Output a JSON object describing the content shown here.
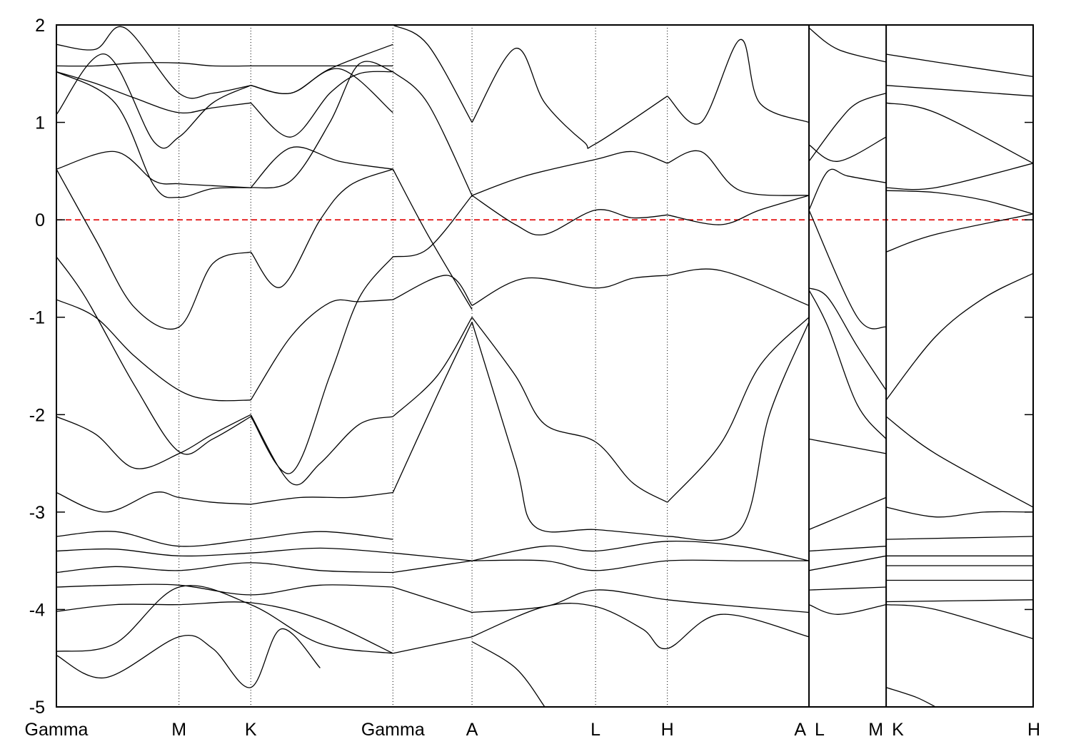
{
  "chart_data": {
    "type": "line",
    "title": "",
    "xlabel": "",
    "ylabel": "",
    "ylim": [
      -5,
      2
    ],
    "yticks": [
      "2",
      "1",
      "0",
      "-1",
      "-2",
      "-3",
      "-4",
      "-5"
    ],
    "ytick_values": [
      2,
      1,
      0,
      -1,
      -2,
      -3,
      -4,
      -5
    ],
    "xlim": [
      0,
      1
    ],
    "kpoints": [
      {
        "label": "Gamma",
        "x": 0.0
      },
      {
        "label": "M",
        "x": 0.1255
      },
      {
        "label": "K",
        "x": 0.199
      },
      {
        "label": "Gamma",
        "x": 0.3445
      },
      {
        "label": "A",
        "x": 0.4255
      },
      {
        "label": "L",
        "x": 0.552
      },
      {
        "label": "H",
        "x": 0.6255
      },
      {
        "label": "A",
        "x": 0.7705
      },
      {
        "label": "L",
        "x": 0.7705
      },
      {
        "label": "M",
        "x": 0.8495
      },
      {
        "label": "K",
        "x": 0.8495
      },
      {
        "label": "H",
        "x": 1.0
      }
    ],
    "segment_breaks": [
      0.7705,
      0.8495
    ],
    "fermi_level": {
      "value": 0,
      "color": "#e00000",
      "style": "dashed"
    },
    "grid": "vertical dotted lines at k-points",
    "line_color": "#000000",
    "series": [
      {
        "x": [
          0,
          0.03,
          0.08,
          0.1255,
          0.16,
          0.199
        ],
        "y": [
          -0.38,
          -0.8,
          -1.7,
          -2.38,
          -2.25,
          -2.02
        ]
      },
      {
        "x": [
          0.199,
          0.24,
          0.28,
          0.31,
          0.3445
        ],
        "y": [
          -2.02,
          -2.6,
          -1.6,
          -0.8,
          -0.38
        ]
      },
      {
        "x": [
          0,
          0.04,
          0.08,
          0.1255,
          0.16,
          0.199
        ],
        "y": [
          0.52,
          -0.2,
          -0.9,
          -1.1,
          -0.45,
          -0.33
        ]
      },
      {
        "x": [
          0.199,
          0.23,
          0.27,
          0.3,
          0.3445
        ],
        "y": [
          -0.33,
          -0.69,
          0.0,
          0.35,
          0.52
        ]
      },
      {
        "x": [
          0,
          0.04,
          0.08,
          0.1255,
          0.16,
          0.199
        ],
        "y": [
          -0.82,
          -1.0,
          -1.4,
          -1.75,
          -1.85,
          -1.85
        ]
      },
      {
        "x": [
          0.199,
          0.24,
          0.28,
          0.31,
          0.3445
        ],
        "y": [
          -1.85,
          -1.2,
          -0.85,
          -0.84,
          -0.82
        ]
      },
      {
        "x": [
          0,
          0.04,
          0.08,
          0.1255,
          0.16,
          0.199
        ],
        "y": [
          -2.02,
          -2.2,
          -2.55,
          -2.4,
          -2.2,
          -2.0
        ]
      },
      {
        "x": [
          0.199,
          0.24,
          0.27,
          0.31,
          0.3445
        ],
        "y": [
          -2.0,
          -2.7,
          -2.5,
          -2.1,
          -2.02
        ]
      },
      {
        "x": [
          0,
          0.05,
          0.1,
          0.1255,
          0.16,
          0.199
        ],
        "y": [
          -2.8,
          -3.0,
          -2.8,
          -2.85,
          -2.9,
          -2.92
        ]
      },
      {
        "x": [
          0.199,
          0.25,
          0.3,
          0.3445
        ],
        "y": [
          -2.92,
          -2.85,
          -2.85,
          -2.8
        ]
      },
      {
        "x": [
          0,
          0.06,
          0.1255,
          0.199,
          0.27,
          0.3445
        ],
        "y": [
          -3.25,
          -3.2,
          -3.35,
          -3.28,
          -3.2,
          -3.28
        ]
      },
      {
        "x": [
          0,
          0.06,
          0.1255,
          0.199,
          0.27,
          0.3445
        ],
        "y": [
          -3.4,
          -3.38,
          -3.45,
          -3.42,
          -3.37,
          -3.42
        ]
      },
      {
        "x": [
          0,
          0.06,
          0.1255,
          0.199,
          0.27,
          0.3445
        ],
        "y": [
          -3.62,
          -3.56,
          -3.6,
          -3.52,
          -3.6,
          -3.62
        ]
      },
      {
        "x": [
          0,
          0.06,
          0.1255,
          0.199,
          0.27,
          0.3445
        ],
        "y": [
          -3.77,
          -3.75,
          -3.75,
          -3.85,
          -3.75,
          -3.77
        ]
      },
      {
        "x": [
          0,
          0.06,
          0.1255,
          0.199,
          0.27,
          0.3445
        ],
        "y": [
          -4.02,
          -3.95,
          -3.95,
          -3.93,
          -4.1,
          -4.45
        ]
      },
      {
        "x": [
          0,
          0.06,
          0.1255,
          0.199,
          0.27,
          0.3445
        ],
        "y": [
          -4.43,
          -4.35,
          -3.77,
          -3.95,
          -4.35,
          -4.45
        ]
      },
      {
        "x": [
          0,
          0.05,
          0.1255,
          0.16,
          0.199,
          0.23,
          0.27
        ],
        "y": [
          -4.47,
          -4.7,
          -4.28,
          -4.4,
          -4.8,
          -4.2,
          -4.6
        ]
      },
      {
        "x": [
          0,
          0.04,
          0.08,
          0.1255,
          0.16,
          0.199
        ],
        "y": [
          1.58,
          1.58,
          1.61,
          1.61,
          1.58,
          1.58
        ]
      },
      {
        "x": [
          0.199,
          0.27,
          0.3445
        ],
        "y": [
          1.58,
          1.58,
          1.58
        ]
      },
      {
        "x": [
          0,
          0.04,
          0.08,
          0.1255,
          0.16,
          0.199
        ],
        "y": [
          1.52,
          1.4,
          1.25,
          1.1,
          1.15,
          1.2
        ]
      },
      {
        "x": [
          0.199,
          0.24,
          0.28,
          0.31,
          0.3445
        ],
        "y": [
          1.2,
          0.85,
          1.3,
          1.5,
          1.52
        ]
      },
      {
        "x": [
          0,
          0.05,
          0.1,
          0.1255,
          0.16,
          0.199
        ],
        "y": [
          1.08,
          1.7,
          0.8,
          0.85,
          1.2,
          1.38
        ]
      },
      {
        "x": [
          0.199,
          0.24,
          0.28,
          0.3445
        ],
        "y": [
          1.38,
          1.3,
          1.55,
          1.8
        ]
      },
      {
        "x": [
          0,
          0.06,
          0.1,
          0.1255,
          0.16,
          0.199
        ],
        "y": [
          0.52,
          0.7,
          0.4,
          0.37,
          0.35,
          0.33
        ]
      },
      {
        "x": [
          0.199,
          0.24,
          0.29,
          0.3445
        ],
        "y": [
          0.33,
          0.74,
          0.6,
          0.52
        ]
      },
      {
        "x": [
          0,
          0.06,
          0.1,
          0.1255,
          0.16,
          0.199
        ],
        "y": [
          1.52,
          1.2,
          0.35,
          0.23,
          0.32,
          0.33
        ]
      },
      {
        "x": [
          0.199,
          0.24,
          0.28,
          0.31,
          0.3445
        ],
        "y": [
          0.33,
          0.4,
          1.0,
          1.6,
          1.52
        ]
      },
      {
        "x": [
          0,
          0.04,
          0.07,
          0.1255,
          0.16,
          0.199
        ],
        "y": [
          1.8,
          1.75,
          1.97,
          1.3,
          1.3,
          1.38
        ]
      },
      {
        "x": [
          0.199,
          0.24,
          0.29,
          0.3445
        ],
        "y": [
          1.38,
          1.3,
          1.55,
          1.1
        ]
      },
      {
        "x": [
          0.3445,
          0.38,
          0.4255
        ],
        "y": [
          -0.38,
          -0.3,
          0.25
        ]
      },
      {
        "x": [
          0.3445,
          0.38,
          0.4255
        ],
        "y": [
          0.52,
          -0.15,
          -0.92
        ]
      },
      {
        "x": [
          0.3445,
          0.38,
          0.4255
        ],
        "y": [
          1.52,
          1.2,
          0.25
        ]
      },
      {
        "x": [
          0.3445,
          0.4,
          0.4255
        ],
        "y": [
          -0.82,
          -0.57,
          -0.88
        ]
      },
      {
        "x": [
          0.3445,
          0.39,
          0.4255
        ],
        "y": [
          -2.02,
          -1.6,
          -1.0
        ]
      },
      {
        "x": [
          0.3445,
          0.39,
          0.4255
        ],
        "y": [
          -2.8,
          -1.8,
          -1.05
        ]
      },
      {
        "x": [
          0.3445,
          0.38,
          0.4255
        ],
        "y": [
          2.0,
          1.8,
          1.0
        ]
      },
      {
        "x": [
          0.3445,
          0.4255
        ],
        "y": [
          -3.42,
          -3.5
        ]
      },
      {
        "x": [
          0.3445,
          0.4255
        ],
        "y": [
          -3.62,
          -3.5
        ]
      },
      {
        "x": [
          0.3445,
          0.4255
        ],
        "y": [
          -3.77,
          -4.03
        ]
      },
      {
        "x": [
          0.3445,
          0.4255
        ],
        "y": [
          -4.45,
          -4.28
        ]
      },
      {
        "x": [
          0.4255,
          0.47,
          0.5,
          0.552,
          0.59,
          0.6255
        ],
        "y": [
          0.25,
          -0.05,
          -0.15,
          0.1,
          0.02,
          0.05
        ]
      },
      {
        "x": [
          0.6255,
          0.68,
          0.72,
          0.7705
        ],
        "y": [
          0.05,
          -0.05,
          0.1,
          0.25
        ]
      },
      {
        "x": [
          0.4255,
          0.48,
          0.552,
          0.59,
          0.6255
        ],
        "y": [
          0.25,
          0.45,
          0.62,
          0.7,
          0.58
        ]
      },
      {
        "x": [
          0.6255,
          0.66,
          0.7,
          0.7705
        ],
        "y": [
          0.58,
          0.7,
          0.3,
          0.25
        ]
      },
      {
        "x": [
          0.4255,
          0.48,
          0.552,
          0.59,
          0.6255
        ],
        "y": [
          -0.88,
          -0.6,
          -0.7,
          -0.6,
          -0.57
        ]
      },
      {
        "x": [
          0.6255,
          0.68,
          0.7705
        ],
        "y": [
          -0.57,
          -0.52,
          -0.88
        ]
      },
      {
        "x": [
          0.4255,
          0.47,
          0.5,
          0.552,
          0.59,
          0.6255
        ],
        "y": [
          -1.0,
          -1.6,
          -2.1,
          -2.28,
          -2.7,
          -2.9
        ]
      },
      {
        "x": [
          0.6255,
          0.68,
          0.72,
          0.7705
        ],
        "y": [
          -2.9,
          -2.3,
          -1.5,
          -1.0
        ]
      },
      {
        "x": [
          0.4255,
          0.47,
          0.49,
          0.552,
          0.6255
        ],
        "y": [
          -1.05,
          -2.5,
          -3.15,
          -3.18,
          -3.25
        ]
      },
      {
        "x": [
          0.6255,
          0.7,
          0.73,
          0.7705
        ],
        "y": [
          -3.25,
          -3.18,
          -2.0,
          -1.05
        ]
      },
      {
        "x": [
          0.4255,
          0.47,
          0.5,
          0.54,
          0.552,
          0.6255
        ],
        "y": [
          1.0,
          1.76,
          1.2,
          0.8,
          0.78,
          1.27
        ]
      },
      {
        "x": [
          0.6255,
          0.66,
          0.7,
          0.72,
          0.7705
        ],
        "y": [
          1.27,
          1.0,
          1.85,
          1.2,
          1.0
        ]
      },
      {
        "x": [
          0.4255,
          0.5,
          0.552,
          0.6255,
          0.7,
          0.7705
        ],
        "y": [
          -3.5,
          -3.35,
          -3.4,
          -3.3,
          -3.35,
          -3.5
        ]
      },
      {
        "x": [
          0.4255,
          0.5,
          0.552,
          0.6255,
          0.7,
          0.7705
        ],
        "y": [
          -3.5,
          -3.5,
          -3.6,
          -3.5,
          -3.5,
          -3.5
        ]
      },
      {
        "x": [
          0.4255,
          0.5,
          0.552,
          0.6255,
          0.7,
          0.7705
        ],
        "y": [
          -4.03,
          -3.97,
          -3.8,
          -3.9,
          -3.97,
          -4.03
        ]
      },
      {
        "x": [
          0.4255,
          0.5,
          0.552,
          0.6,
          0.6255,
          0.68,
          0.7705
        ],
        "y": [
          -4.28,
          -3.97,
          -3.97,
          -4.2,
          -4.4,
          -4.05,
          -4.28
        ]
      },
      {
        "x": [
          0.4255,
          0.47,
          0.5
        ],
        "y": [
          -4.33,
          -4.6,
          -5.0
        ]
      },
      {
        "x": [
          0.7705,
          0.79,
          0.81,
          0.8495
        ],
        "y": [
          0.1,
          0.5,
          0.45,
          0.38
        ]
      },
      {
        "x": [
          0.7705,
          0.8,
          0.8495
        ],
        "y": [
          0.77,
          0.6,
          0.85
        ]
      },
      {
        "x": [
          0.7705,
          0.8,
          0.82,
          0.8495
        ],
        "y": [
          0.6,
          1.0,
          1.2,
          1.3
        ]
      },
      {
        "x": [
          0.7705,
          0.82,
          0.8495
        ],
        "y": [
          0.1,
          -1.0,
          -1.1
        ]
      },
      {
        "x": [
          0.7705,
          0.79,
          0.82,
          0.8495
        ],
        "y": [
          -0.7,
          -0.8,
          -1.3,
          -1.75
        ]
      },
      {
        "x": [
          0.7705,
          0.79,
          0.82,
          0.8495
        ],
        "y": [
          -0.72,
          -1.1,
          -1.9,
          -2.25
        ]
      },
      {
        "x": [
          0.7705,
          0.8495
        ],
        "y": [
          -2.25,
          -2.4
        ]
      },
      {
        "x": [
          0.7705,
          0.8495
        ],
        "y": [
          -3.18,
          -2.85
        ]
      },
      {
        "x": [
          0.7705,
          0.8495
        ],
        "y": [
          -3.4,
          -3.35
        ]
      },
      {
        "x": [
          0.7705,
          0.8495
        ],
        "y": [
          -3.6,
          -3.45
        ]
      },
      {
        "x": [
          0.7705,
          0.8495
        ],
        "y": [
          -3.8,
          -3.77
        ]
      },
      {
        "x": [
          0.7705,
          0.8,
          0.8495
        ],
        "y": [
          -3.95,
          -4.05,
          -3.95
        ]
      },
      {
        "x": [
          0.7705,
          0.8,
          0.8495
        ],
        "y": [
          1.97,
          1.75,
          1.62
        ]
      },
      {
        "x": [
          0.8495,
          0.9,
          0.95,
          1.0
        ],
        "y": [
          0.3,
          0.28,
          0.2,
          0.06
        ]
      },
      {
        "x": [
          0.8495,
          0.9,
          1.0
        ],
        "y": [
          0.33,
          0.33,
          0.58
        ]
      },
      {
        "x": [
          0.8495,
          0.9,
          1.0
        ],
        "y": [
          1.2,
          1.1,
          0.58
        ]
      },
      {
        "x": [
          0.8495,
          0.9,
          1.0
        ],
        "y": [
          -0.33,
          -0.15,
          0.06
        ]
      },
      {
        "x": [
          0.8495,
          0.9,
          0.95,
          1.0
        ],
        "y": [
          -1.85,
          -1.2,
          -0.8,
          -0.55
        ]
      },
      {
        "x": [
          0.8495,
          0.9,
          1.0
        ],
        "y": [
          -2.02,
          -2.4,
          -2.95
        ]
      },
      {
        "x": [
          0.8495,
          0.9,
          0.95,
          1.0
        ],
        "y": [
          -2.95,
          -3.05,
          -3.0,
          -3.0
        ]
      },
      {
        "x": [
          0.8495,
          1.0
        ],
        "y": [
          -3.28,
          -3.25
        ]
      },
      {
        "x": [
          0.8495,
          1.0
        ],
        "y": [
          -3.45,
          -3.45
        ]
      },
      {
        "x": [
          0.8495,
          1.0
        ],
        "y": [
          -3.55,
          -3.55
        ]
      },
      {
        "x": [
          0.8495,
          1.0
        ],
        "y": [
          -3.7,
          -3.7
        ]
      },
      {
        "x": [
          0.8495,
          1.0
        ],
        "y": [
          -3.92,
          -3.9
        ]
      },
      {
        "x": [
          0.8495,
          0.9,
          1.0
        ],
        "y": [
          -3.95,
          -4.0,
          -4.3
        ]
      },
      {
        "x": [
          0.8495,
          0.9,
          1.0
        ],
        "y": [
          1.7,
          1.62,
          1.47
        ]
      },
      {
        "x": [
          0.8495,
          1.0
        ],
        "y": [
          1.38,
          1.27
        ]
      },
      {
        "x": [
          0.8495,
          0.88,
          0.9
        ],
        "y": [
          -4.8,
          -4.9,
          -5.0
        ]
      }
    ]
  }
}
